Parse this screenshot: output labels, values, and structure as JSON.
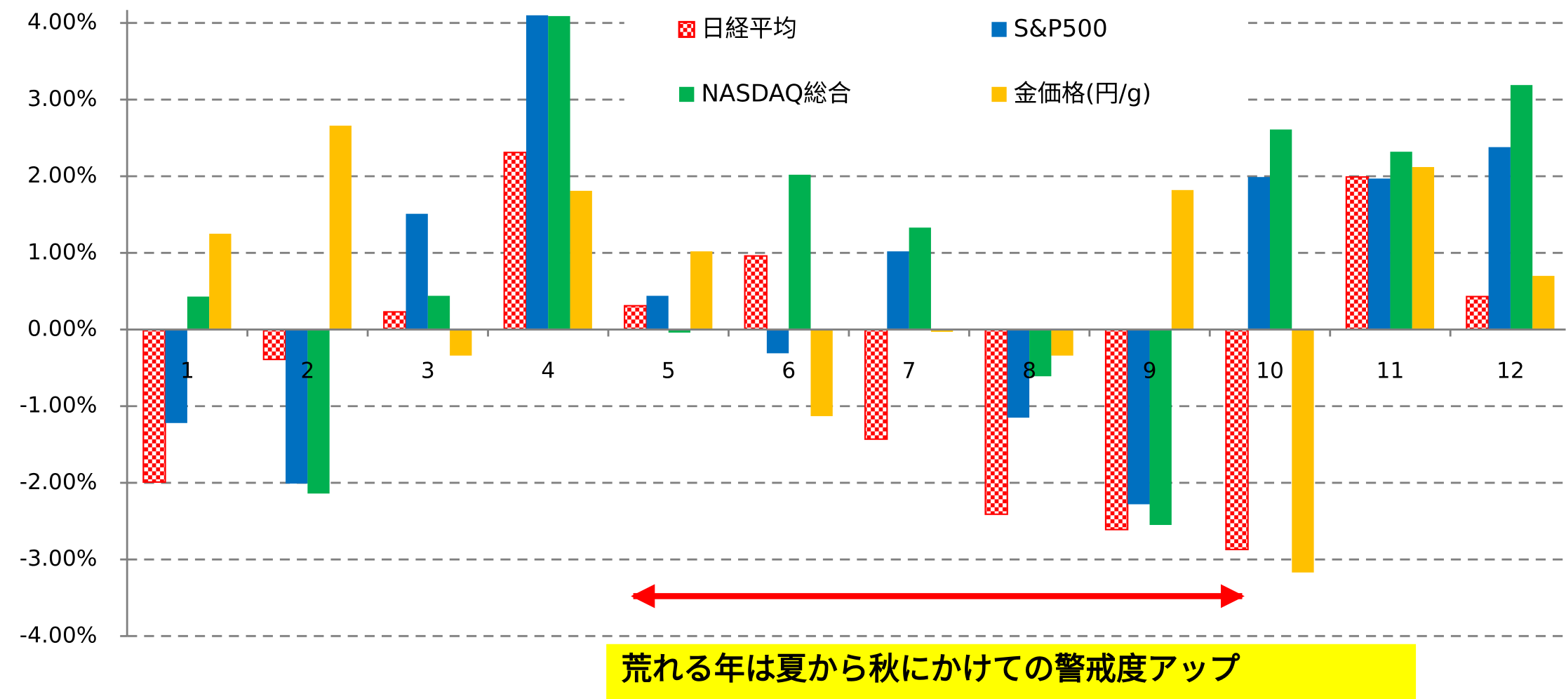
{
  "chart_data": {
    "type": "bar",
    "categories": [
      "1",
      "2",
      "3",
      "4",
      "5",
      "6",
      "7",
      "8",
      "9",
      "10",
      "11",
      "12"
    ],
    "series": [
      {
        "name": "日経平均",
        "color": "#ff0000",
        "fill_pattern": "checker",
        "values": [
          -1.99,
          -0.39,
          0.23,
          2.31,
          0.31,
          0.96,
          -1.43,
          -2.41,
          -2.61,
          -2.87,
          1.99,
          0.43
        ]
      },
      {
        "name": "S&P500",
        "color": "#0070c0",
        "values": [
          -1.22,
          -2.01,
          1.51,
          4.1,
          0.44,
          -0.31,
          1.02,
          -1.15,
          -2.28,
          1.99,
          1.97,
          2.38
        ]
      },
      {
        "name": "NASDAQ総合",
        "color": "#00b050",
        "values": [
          0.43,
          -2.14,
          0.44,
          4.09,
          -0.04,
          2.02,
          1.33,
          -0.61,
          -2.55,
          2.61,
          2.32,
          3.19
        ]
      },
      {
        "name": "金価格(円/g)",
        "color": "#ffc000",
        "values": [
          1.25,
          2.66,
          -0.34,
          1.81,
          1.02,
          -1.13,
          -0.03,
          -0.34,
          1.82,
          -3.17,
          2.12,
          0.7
        ]
      }
    ],
    "ylim": [
      -4,
      4
    ],
    "yticks": [
      {
        "value": 4,
        "label": "4.00%"
      },
      {
        "value": 3,
        "label": "3.00%"
      },
      {
        "value": 2,
        "label": "2.00%"
      },
      {
        "value": 1,
        "label": "1.00%"
      },
      {
        "value": 0,
        "label": "0.00%"
      },
      {
        "value": -1,
        "label": "-1.00%"
      },
      {
        "value": -2,
        "label": "-2.00%"
      },
      {
        "value": -3,
        "label": "-3.00%"
      },
      {
        "value": -4,
        "label": "-4.00%"
      }
    ],
    "grid": true,
    "legend": "top",
    "annotation": "荒れる年は夏から秋にかけての警戒度アップ"
  }
}
